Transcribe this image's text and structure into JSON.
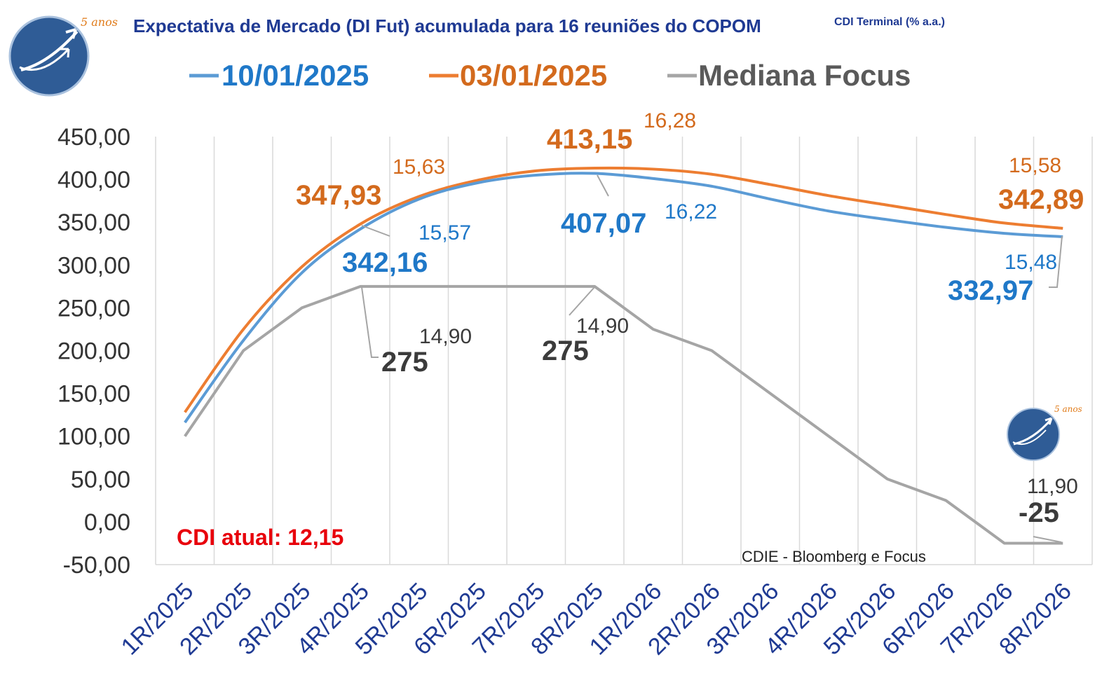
{
  "title": "Expectativa de Mercado (DI Fut) acumulada para 16 reuniões do COPOM",
  "title_suffix": "CDI Terminal (% a.a.)",
  "logo_text": "5 anos",
  "source": "CDIE - Bloomberg e Focus",
  "cdi_note": "CDI atual: 12,15",
  "colors": {
    "blue": "#5b9bd5",
    "orange": "#ed7d31",
    "gray": "#a5a5a5",
    "blue_text": "#1f78c8",
    "orange_text": "#d36a1d",
    "gray_text": "#3b3b3b"
  },
  "chart_data": {
    "type": "line",
    "categories": [
      "1R/2025",
      "2R/2025",
      "3R/2025",
      "4R/2025",
      "5R/2025",
      "6R/2025",
      "7R/2025",
      "8R/2025",
      "1R/2026",
      "2R/2026",
      "3R/2026",
      "4R/2026",
      "5R/2026",
      "6R/2026",
      "7R/2026",
      "8R/2026"
    ],
    "ylim": [
      -50,
      450
    ],
    "yticks": [
      "-50,00",
      "0,00",
      "50,00",
      "100,00",
      "150,00",
      "200,00",
      "250,00",
      "300,00",
      "350,00",
      "400,00",
      "450,00"
    ],
    "grid": "vertical",
    "legend_position": "top",
    "series": [
      {
        "name": "10/01/2025",
        "color": "#5b9bd5",
        "values": [
          116,
          212,
          291,
          342.16,
          377,
          396,
          405,
          407.07,
          401,
          392,
          377,
          363,
          353,
          344,
          337,
          332.97
        ]
      },
      {
        "name": "03/01/2025",
        "color": "#ed7d31",
        "values": [
          128,
          225,
          298,
          347.93,
          380,
          399,
          410,
          413.15,
          412,
          406,
          394,
          381,
          370,
          359,
          349,
          342.89
        ]
      },
      {
        "name": "Mediana Focus",
        "color": "#a5a5a5",
        "values": [
          100,
          200,
          250,
          275,
          275,
          275,
          275,
          275,
          225,
          200,
          150,
          100,
          50,
          25,
          -25,
          -25
        ]
      }
    ],
    "annotations": [
      {
        "series": 1,
        "index": 3,
        "value": "347,93",
        "rate": "15,63"
      },
      {
        "series": 0,
        "index": 3,
        "value": "342,16",
        "rate": "15,57"
      },
      {
        "series": 1,
        "index": 7,
        "value": "413,15",
        "rate": "16,28"
      },
      {
        "series": 0,
        "index": 7,
        "value": "407,07",
        "rate": "16,22"
      },
      {
        "series": 2,
        "index": 3,
        "value": "275",
        "rate": "14,90"
      },
      {
        "series": 2,
        "index": 7,
        "value": "275",
        "rate": "14,90"
      },
      {
        "series": 1,
        "index": 15,
        "value": "342,89",
        "rate": "15,58"
      },
      {
        "series": 0,
        "index": 15,
        "value": "332,97",
        "rate": "15,48"
      },
      {
        "series": 2,
        "index": 15,
        "value": "-25",
        "rate": "11,90"
      }
    ]
  }
}
